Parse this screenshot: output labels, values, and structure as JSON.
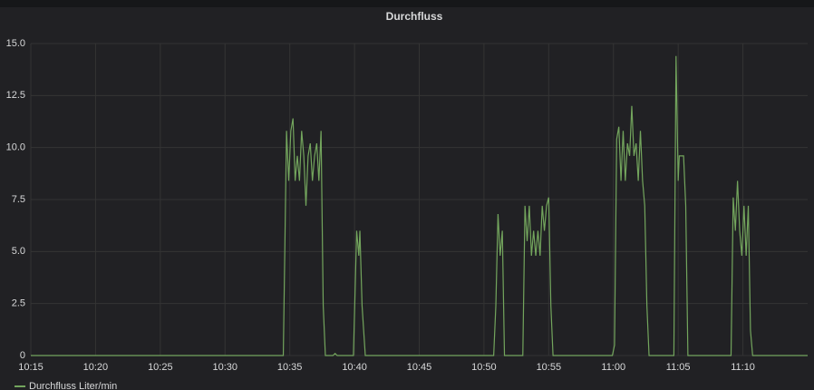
{
  "chart_data": {
    "type": "line",
    "title": "Durchfluss",
    "x": [
      "10:15:00",
      "10:34:30",
      "10:34:45",
      "10:34:55",
      "10:35:05",
      "10:35:15",
      "10:35:25",
      "10:35:35",
      "10:35:45",
      "10:35:55",
      "10:36:05",
      "10:36:15",
      "10:36:25",
      "10:36:35",
      "10:36:45",
      "10:36:55",
      "10:37:05",
      "10:37:15",
      "10:37:25",
      "10:37:35",
      "10:37:45",
      "10:38:20",
      "10:38:30",
      "10:38:40",
      "10:39:55",
      "10:40:10",
      "10:40:20",
      "10:40:25",
      "10:40:35",
      "10:40:50",
      "10:50:45",
      "10:50:55",
      "10:51:05",
      "10:51:15",
      "10:51:25",
      "10:51:35",
      "10:53:00",
      "10:53:10",
      "10:53:20",
      "10:53:30",
      "10:53:40",
      "10:53:50",
      "10:54:00",
      "10:54:10",
      "10:54:20",
      "10:54:30",
      "10:54:40",
      "10:54:50",
      "10:55:00",
      "10:55:10",
      "10:55:20",
      "10:59:55",
      "11:00:05",
      "11:00:15",
      "11:00:25",
      "11:00:35",
      "11:00:45",
      "11:00:55",
      "11:01:05",
      "11:01:15",
      "11:01:25",
      "11:01:35",
      "11:01:45",
      "11:01:55",
      "11:02:05",
      "11:02:15",
      "11:02:25",
      "11:02:35",
      "11:02:45",
      "11:04:40",
      "11:04:50",
      "11:05:00",
      "11:05:05",
      "11:05:15",
      "11:05:25",
      "11:05:35",
      "11:05:45",
      "11:09:05",
      "11:09:15",
      "11:09:25",
      "11:09:35",
      "11:09:45",
      "11:09:55",
      "11:10:05",
      "11:10:15",
      "11:10:25",
      "11:10:35",
      "11:10:45",
      "11:15:00"
    ],
    "series": [
      {
        "name": "Durchfluss Liter/min",
        "color": "#73a55d",
        "values": [
          0,
          0,
          10.8,
          8.4,
          10.8,
          11.4,
          8.4,
          9.6,
          8.4,
          10.8,
          9.6,
          7.2,
          9.6,
          10.2,
          8.4,
          9.6,
          10.2,
          8.4,
          10.8,
          2.4,
          0,
          0,
          0.1,
          0,
          0,
          6.0,
          4.8,
          6.0,
          2.4,
          0,
          0,
          2.4,
          6.8,
          4.8,
          6.0,
          0,
          0,
          7.2,
          5.5,
          7.2,
          4.8,
          6.0,
          4.8,
          6.0,
          4.8,
          7.2,
          6.0,
          7.2,
          7.6,
          2.4,
          0,
          0,
          0.5,
          10.4,
          11.0,
          8.4,
          10.8,
          8.4,
          10.2,
          9.6,
          12.0,
          9.6,
          10.2,
          8.4,
          10.8,
          8.4,
          7.2,
          2.4,
          0,
          0,
          14.4,
          8.4,
          9.6,
          9.6,
          9.6,
          7.2,
          0,
          0,
          7.6,
          6.0,
          8.4,
          6.0,
          4.8,
          7.2,
          4.8,
          7.2,
          1.2,
          0,
          0
        ]
      }
    ],
    "xlim": [
      "10:15",
      "11:15"
    ],
    "xticks": [
      "10:15",
      "10:20",
      "10:25",
      "10:30",
      "10:35",
      "10:40",
      "10:45",
      "10:50",
      "10:55",
      "11:00",
      "11:05",
      "11:10"
    ],
    "ylim": [
      0,
      15
    ],
    "yticks": [
      0,
      {
        "value": 2.5,
        "label": "2.5"
      },
      {
        "value": 5,
        "label": "5.0"
      },
      {
        "value": 7.5,
        "label": "7.5"
      },
      {
        "value": 10,
        "label": "10.0"
      },
      {
        "value": 12.5,
        "label": "12.5"
      },
      {
        "value": 15,
        "label": "15.0"
      }
    ],
    "grid": true
  }
}
